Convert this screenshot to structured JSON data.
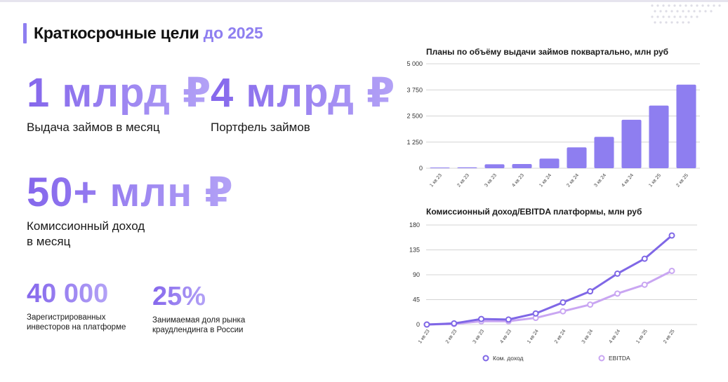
{
  "header": {
    "title_main": "Краткосрочные цели",
    "title_accent": "до 2025"
  },
  "kpis": [
    {
      "value": "1 млрд ₽",
      "label": "Выдача займов в месяц"
    },
    {
      "value": "4 млрд ₽",
      "label": "Портфель займов"
    },
    {
      "value": "50+ млн ₽",
      "label_line1": "Комиссионный доход",
      "label_line2": "в месяц"
    },
    {
      "value": "40 000",
      "label_line1": "Зарегистрированных",
      "label_line2": "инвесторов на платформе"
    },
    {
      "value": "25%",
      "label_line1": "Занимаемая доля рынка",
      "label_line2": "краудлендинга в России"
    }
  ],
  "colors": {
    "accent": "#8e7ef0",
    "bar": "#8e7ef0",
    "line_primary": "#7f67e6",
    "line_secondary": "#c9a6f2",
    "grid": "#d4d4d4"
  },
  "chart_data": [
    {
      "type": "bar",
      "title": "Планы по объёму выдачи займов поквартально, млн руб",
      "categories": [
        "1 кв 23",
        "2 кв 23",
        "3 кв 23",
        "4 кв 23",
        "1 кв 24",
        "2 кв 24",
        "3 кв 24",
        "4 кв 24",
        "1 кв 25",
        "2 кв 25"
      ],
      "values": [
        5,
        40,
        190,
        200,
        460,
        1000,
        1500,
        2320,
        3000,
        4000
      ],
      "ylim": [
        0,
        5000
      ],
      "yticks": [
        0,
        1250,
        2500,
        3750,
        5000
      ],
      "ytick_labels": [
        "0",
        "1 250",
        "2 500",
        "3 750",
        "5 000"
      ],
      "grid": true
    },
    {
      "type": "line",
      "title": "Комиссионный доход/EBITDA платформы, млн руб",
      "categories": [
        "1 кв 23",
        "2 кв 23",
        "3 кв 23",
        "4 кв 23",
        "1 кв 24",
        "2 кв 24",
        "3 кв 24",
        "4 кв 24",
        "1 кв 25",
        "2 кв 25"
      ],
      "series": [
        {
          "name": "Ком. доход",
          "values": [
            0,
            2,
            10,
            9,
            20,
            40,
            60,
            92,
            119,
            161
          ]
        },
        {
          "name": "EBITDA",
          "values": [
            0,
            1,
            6,
            6,
            12,
            24,
            36,
            56,
            72,
            97
          ]
        }
      ],
      "ylim": [
        0,
        180
      ],
      "yticks": [
        0,
        45,
        90,
        135,
        180
      ],
      "ytick_labels": [
        "0",
        "45",
        "90",
        "135",
        "180"
      ],
      "legend": "bottom",
      "grid": true
    }
  ]
}
